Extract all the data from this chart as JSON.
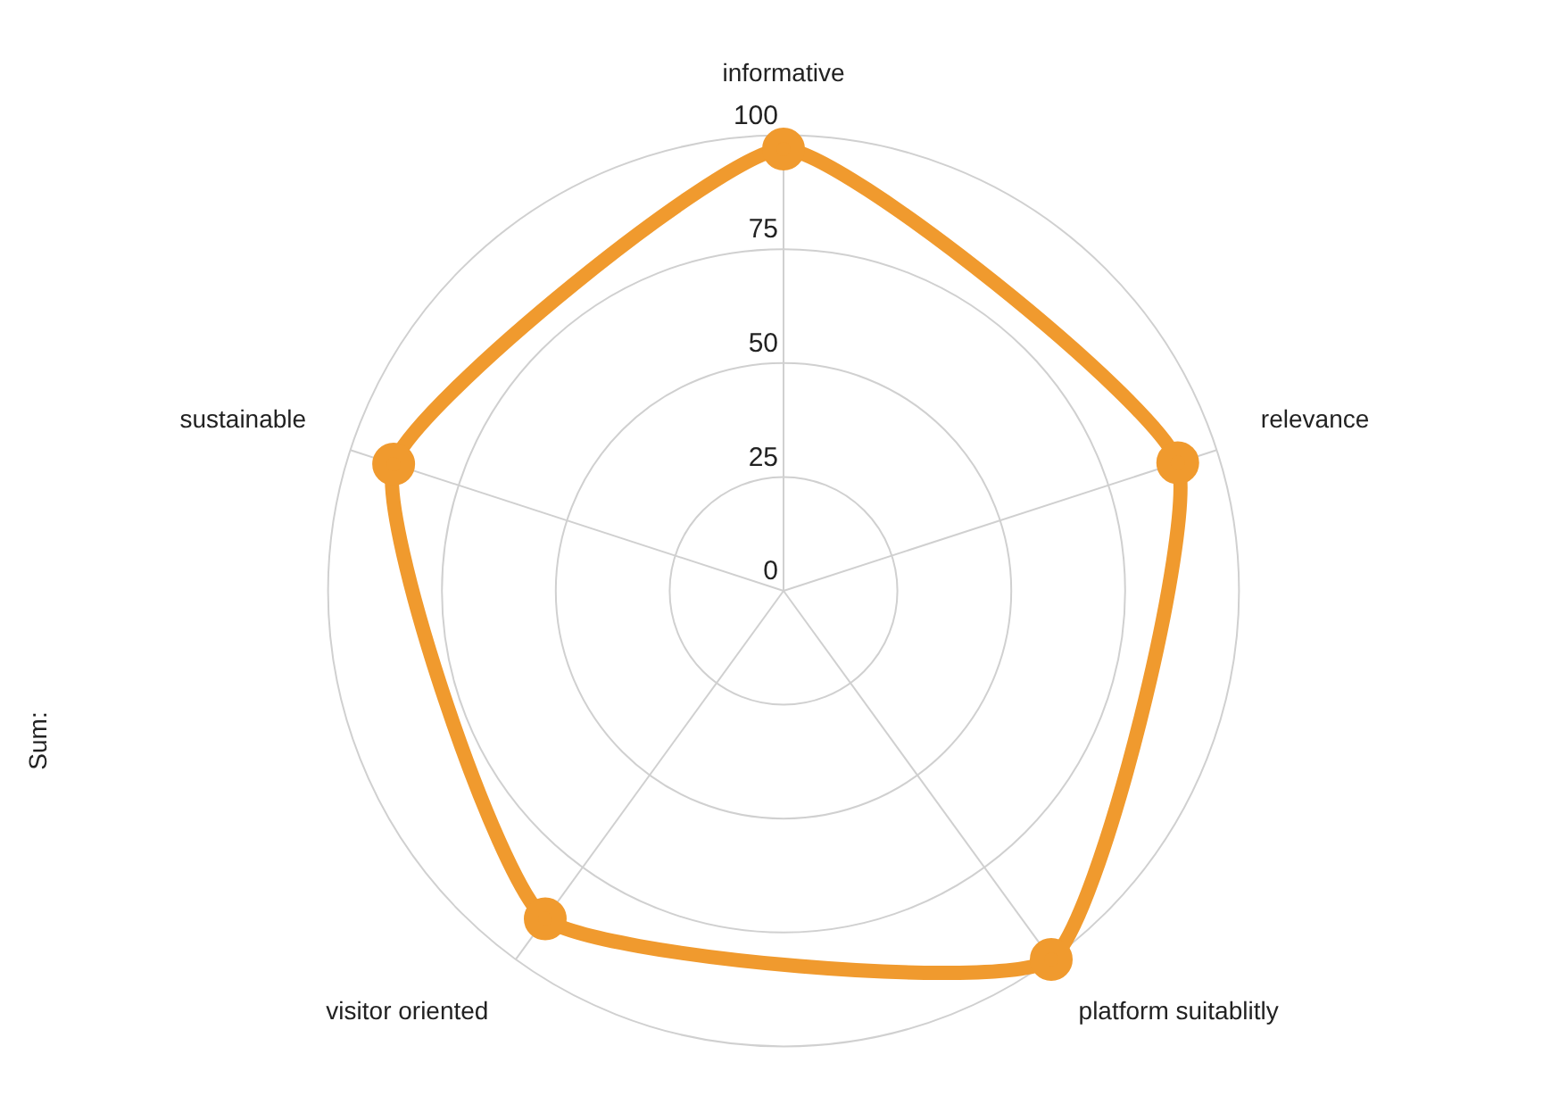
{
  "chart_data": {
    "type": "radar",
    "ylabel": "Sum:",
    "categories": [
      "informative",
      "relevance",
      "platform suitablitly",
      "visitor oriented",
      "sustainable"
    ],
    "series": [
      {
        "color": "#f09a2e",
        "values": [
          97,
          91,
          100,
          89,
          90
        ]
      }
    ],
    "ylim": [
      0,
      100
    ],
    "yticks": [
      0,
      25,
      50,
      75,
      100
    ],
    "grid": true,
    "legend": false,
    "marker": "circle",
    "line_style": "solid"
  }
}
